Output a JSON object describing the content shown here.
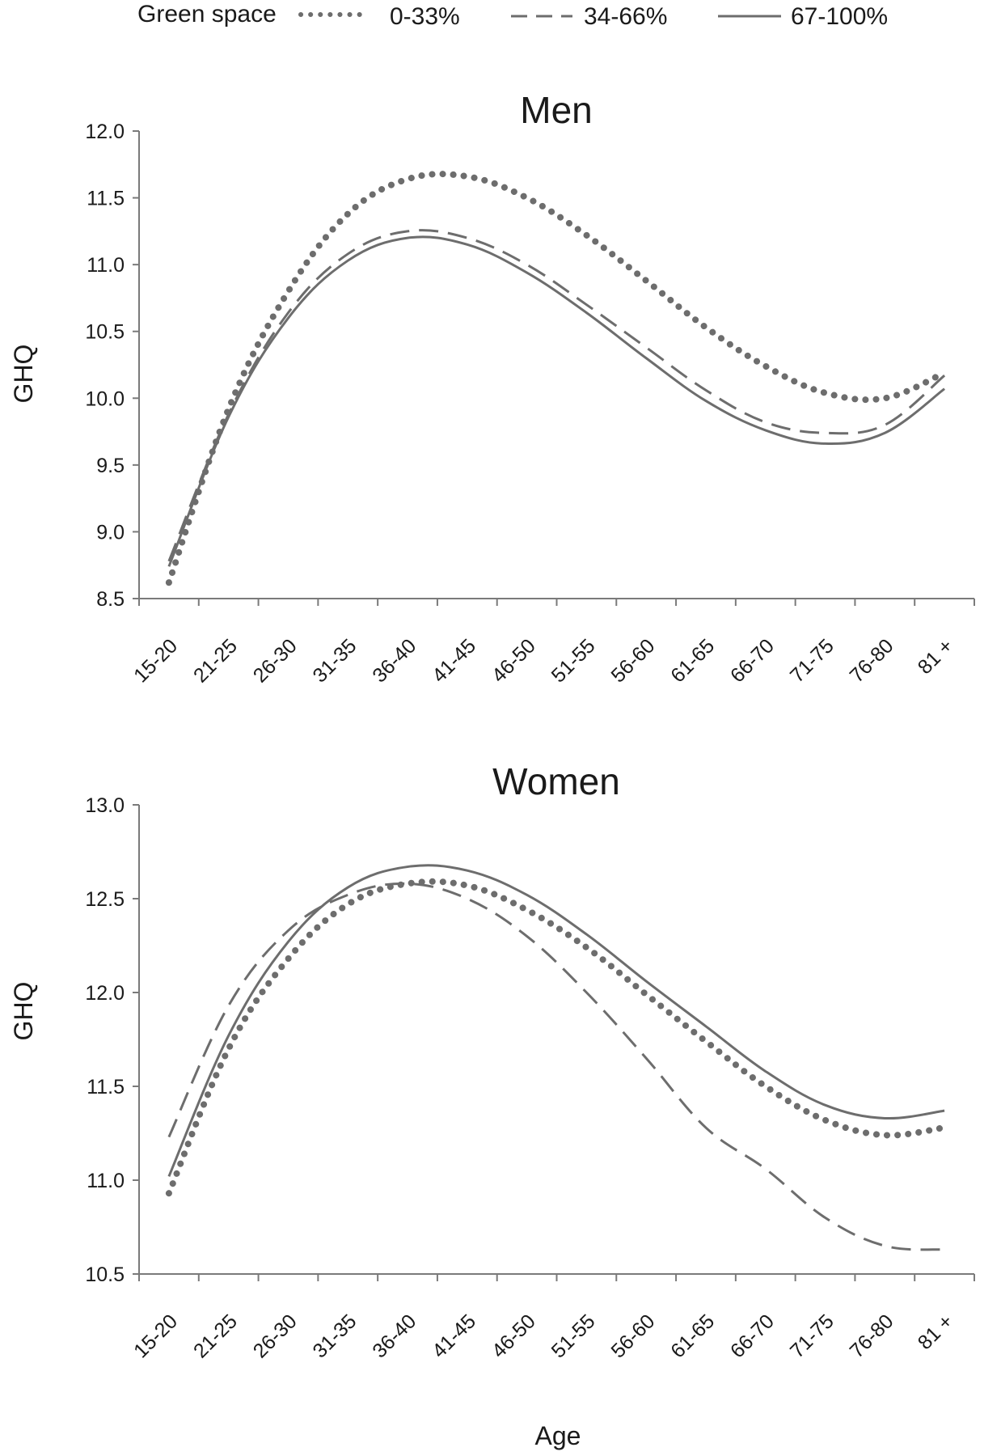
{
  "legend": {
    "title": "Green space",
    "entries": [
      {
        "label": "0-33%",
        "style": "dotted"
      },
      {
        "label": "34-66%",
        "style": "dashed"
      },
      {
        "label": "67-100%",
        "style": "solid"
      }
    ]
  },
  "colors": {
    "series": "#6d6d6d",
    "axis": "#7a7a7a",
    "text": "#1a1a1a"
  },
  "x_axis_title": "Age",
  "chart_data": [
    {
      "type": "line",
      "title": "Men",
      "xlabel": "",
      "ylabel": "GHQ",
      "categories": [
        "15-20",
        "21-25",
        "26-30",
        "31-35",
        "36-40",
        "41-45",
        "46-50",
        "51-55",
        "56-60",
        "61-65",
        "66-70",
        "71-75",
        "76-80",
        "81 +"
      ],
      "ylim": [
        8.5,
        12.0
      ],
      "yticks": [
        "12.0",
        "11.5",
        "11.0",
        "10.5",
        "10.0",
        "9.5",
        "9.0",
        "8.5"
      ],
      "grid": false,
      "series": [
        {
          "name": "0-33%",
          "style": "dotted",
          "values": [
            8.62,
            9.92,
            10.8,
            11.38,
            11.64,
            11.66,
            11.5,
            11.22,
            10.88,
            10.53,
            10.24,
            10.04,
            10.0,
            10.19
          ]
        },
        {
          "name": "34-66%",
          "style": "dashed",
          "values": [
            8.78,
            9.88,
            10.64,
            11.08,
            11.25,
            11.2,
            11.0,
            10.7,
            10.38,
            10.06,
            9.82,
            9.74,
            9.8,
            10.17
          ]
        },
        {
          "name": "67-100%",
          "style": "solid",
          "values": [
            8.74,
            9.86,
            10.6,
            11.03,
            11.2,
            11.15,
            10.94,
            10.64,
            10.3,
            9.98,
            9.76,
            9.66,
            9.74,
            10.07
          ]
        }
      ]
    },
    {
      "type": "line",
      "title": "Women",
      "xlabel": "Age",
      "ylabel": "GHQ",
      "categories": [
        "15-20",
        "21-25",
        "26-30",
        "31-35",
        "36-40",
        "41-45",
        "46-50",
        "51-55",
        "56-60",
        "61-65",
        "66-70",
        "71-75",
        "76-80",
        "81 +"
      ],
      "ylim": [
        10.5,
        13.0
      ],
      "yticks": [
        "13.0",
        "12.5",
        "12.0",
        "11.5",
        "11.0",
        "10.5"
      ],
      "grid": false,
      "series": [
        {
          "name": "0-33%",
          "style": "dotted",
          "values": [
            10.93,
            11.7,
            12.18,
            12.47,
            12.58,
            12.57,
            12.44,
            12.24,
            11.99,
            11.74,
            11.5,
            11.32,
            11.24,
            11.28
          ]
        },
        {
          "name": "34-66%",
          "style": "dashed",
          "values": [
            11.23,
            11.93,
            12.33,
            12.52,
            12.58,
            12.5,
            12.3,
            12.0,
            11.65,
            11.28,
            11.06,
            10.8,
            10.65,
            10.63
          ]
        },
        {
          "name": "67-100%",
          "style": "solid",
          "values": [
            11.02,
            11.77,
            12.27,
            12.56,
            12.67,
            12.65,
            12.52,
            12.31,
            12.06,
            11.82,
            11.58,
            11.4,
            11.33,
            11.37
          ]
        }
      ]
    }
  ]
}
